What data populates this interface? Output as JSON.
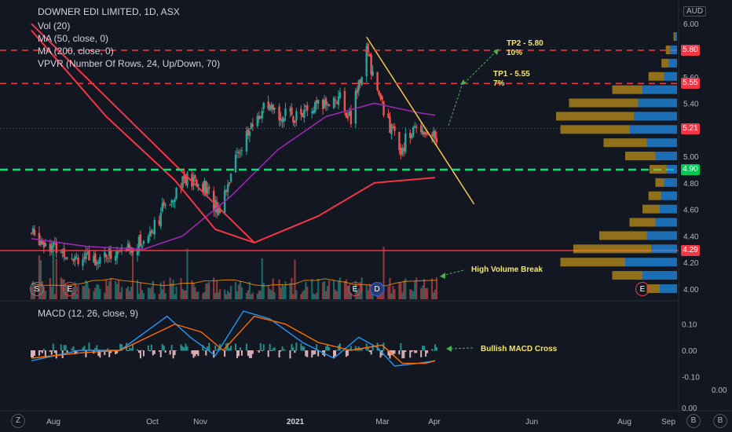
{
  "header": {
    "title": "DOWNER EDI LIMITED, 1D, ASX",
    "indicators": [
      "Vol (20)",
      "MA (50, close, 0)",
      "MA (200, close, 0)",
      "VPVR (Number Of Rows, 24, Up/Down, 70)"
    ],
    "macd_label": "MACD (12, 26, close, 9)",
    "currency": "AUD"
  },
  "colors": {
    "bg": "#131722",
    "up": "#26a69a",
    "down": "#ef5350",
    "ma50": "#9c27b0",
    "ma200": "#f23645",
    "trend": "#f9c74f",
    "support": "#00e676",
    "resistance": "#f23645",
    "arrow": "#4caf50",
    "vp_up": "#2196f3",
    "vp_down": "#d4a017"
  },
  "price_badges": [
    {
      "value": "5.80",
      "color": "#f23645"
    },
    {
      "value": "5.55",
      "color": "#f23645"
    },
    {
      "value": "5.21",
      "color": "#f23645"
    },
    {
      "value": "4.90",
      "color": "#00c853"
    },
    {
      "value": "4.29",
      "color": "#f23645"
    }
  ],
  "annotations": {
    "tp2": "TP2 - 5.80",
    "tp2_pct": "10%",
    "tp1": "TP1 - 5.55",
    "tp1_pct": "7%",
    "high_volume": "High Volume Break",
    "bullish_macd": "Bullish MACD Cross"
  },
  "events": [
    "S",
    "E",
    "E",
    "D",
    "E"
  ],
  "corner_buttons": [
    "Z",
    "B",
    "B"
  ],
  "chart_data": [
    {
      "type": "candlestick",
      "title": "DOWNER EDI LIMITED, 1D, ASX",
      "currency": "AUD",
      "x_ticks": [
        "Aug",
        "Oct",
        "Nov",
        "2021",
        "Mar",
        "Apr",
        "Jun",
        "Aug",
        "Sep"
      ],
      "y_ticks": [
        "6.00",
        "5.80",
        "5.60",
        "5.40",
        "5.21",
        "5.00",
        "4.80",
        "4.60",
        "4.40",
        "4.20",
        "4.00"
      ],
      "ylim": [
        3.98,
        6.1
      ],
      "last_price": 5.21,
      "levels": {
        "tp2": 5.8,
        "tp1": 5.55,
        "current": 5.21,
        "support": 4.9,
        "low_volume_node": 4.29
      },
      "anchors": {
        "x": [
          "2020-07-15",
          "2020-08-01",
          "2020-08-20",
          "2020-09-10",
          "2020-09-25",
          "2020-10-05",
          "2020-10-20",
          "2020-11-02",
          "2020-11-12",
          "2020-11-25",
          "2020-12-10",
          "2020-12-28",
          "2021-01-12",
          "2021-01-28",
          "2021-02-05",
          "2021-02-15",
          "2021-02-25",
          "2021-03-08",
          "2021-03-20",
          "2021-03-31"
        ],
        "close": [
          4.42,
          4.3,
          4.22,
          4.28,
          4.36,
          4.55,
          4.83,
          4.78,
          4.6,
          5.05,
          5.35,
          5.3,
          5.35,
          5.45,
          5.28,
          5.8,
          5.38,
          5.05,
          5.24,
          5.15
        ]
      },
      "ma50": {
        "x": [
          "2020-07-15",
          "2020-08-20",
          "2020-09-25",
          "2020-10-20",
          "2020-11-20",
          "2020-12-20",
          "2021-01-20",
          "2021-02-20",
          "2021-03-20",
          "2021-03-31"
        ],
        "y": [
          4.38,
          4.32,
          4.3,
          4.4,
          4.7,
          5.05,
          5.3,
          5.4,
          5.33,
          5.31
        ]
      },
      "ma200": {
        "x": [
          "2020-07-15",
          "2020-09-01",
          "2020-10-15",
          "2020-11-10",
          "2020-12-05",
          "2021-01-15",
          "2021-02-20",
          "2021-03-31"
        ],
        "y": [
          5.95,
          5.3,
          4.82,
          4.45,
          4.35,
          4.55,
          4.8,
          4.84
        ]
      },
      "trendlines": [
        {
          "name": "downtrend",
          "from": [
            "2020-07-15",
            6.0
          ],
          "to": [
            "2020-12-05",
            4.35
          ]
        },
        {
          "name": "wedge-resistance",
          "from": [
            "2021-02-15",
            5.9
          ],
          "to": [
            "2021-04-25",
            4.64
          ]
        }
      ],
      "targets": [
        {
          "label": "TP1 - 5.55",
          "value": 5.55,
          "gain": "7%"
        },
        {
          "label": "TP2 - 5.80",
          "value": 5.8,
          "gain": "10%"
        }
      ],
      "volume_profile": [
        {
          "price": 5.9,
          "up": 2,
          "down": 2
        },
        {
          "price": 5.8,
          "up": 8,
          "down": 5
        },
        {
          "price": 5.7,
          "up": 10,
          "down": 8
        },
        {
          "price": 5.6,
          "up": 15,
          "down": 18
        },
        {
          "price": 5.5,
          "up": 40,
          "down": 35
        },
        {
          "price": 5.4,
          "up": 45,
          "down": 80
        },
        {
          "price": 5.3,
          "up": 50,
          "down": 90
        },
        {
          "price": 5.2,
          "up": 55,
          "down": 80
        },
        {
          "price": 5.1,
          "up": 35,
          "down": 50
        },
        {
          "price": 5.0,
          "up": 25,
          "down": 35
        },
        {
          "price": 4.9,
          "up": 12,
          "down": 20
        },
        {
          "price": 4.8,
          "up": 15,
          "down": 10
        },
        {
          "price": 4.7,
          "up": 18,
          "down": 15
        },
        {
          "price": 4.6,
          "up": 20,
          "down": 20
        },
        {
          "price": 4.5,
          "up": 25,
          "down": 30
        },
        {
          "price": 4.4,
          "up": 35,
          "down": 55
        },
        {
          "price": 4.3,
          "up": 30,
          "down": 90
        },
        {
          "price": 4.2,
          "up": 60,
          "down": 75
        },
        {
          "price": 4.1,
          "up": 40,
          "down": 35
        },
        {
          "price": 4.0,
          "up": 20,
          "down": 15
        }
      ]
    },
    {
      "type": "macd",
      "title": "MACD (12, 26, close, 9)",
      "y_ticks": [
        "0.10",
        "0.00",
        "-0.10"
      ],
      "ylim": [
        -0.16,
        0.2
      ],
      "macd": {
        "x": [
          "2020-07-15",
          "2020-08-15",
          "2020-09-10",
          "2020-10-10",
          "2020-10-25",
          "2020-11-10",
          "2020-11-28",
          "2020-12-15",
          "2021-01-05",
          "2021-01-25",
          "2021-02-10",
          "2021-02-22",
          "2021-03-05",
          "2021-03-20",
          "2021-03-31"
        ],
        "y": [
          -0.04,
          0.0,
          0.0,
          0.13,
          0.05,
          -0.02,
          0.15,
          0.12,
          0.03,
          -0.03,
          0.05,
          0.01,
          -0.06,
          -0.05,
          -0.04
        ]
      },
      "signal": {
        "x": [
          "2020-07-15",
          "2020-08-15",
          "2020-09-10",
          "2020-10-15",
          "2020-11-01",
          "2020-11-15",
          "2020-12-05",
          "2020-12-25",
          "2021-01-15",
          "2021-02-05",
          "2021-02-25",
          "2021-03-10",
          "2021-03-25",
          "2021-03-31"
        ],
        "y": [
          -0.03,
          -0.01,
          0.0,
          0.1,
          0.07,
          0.0,
          0.13,
          0.1,
          0.03,
          0.0,
          0.02,
          -0.05,
          -0.05,
          -0.04
        ]
      }
    }
  ]
}
